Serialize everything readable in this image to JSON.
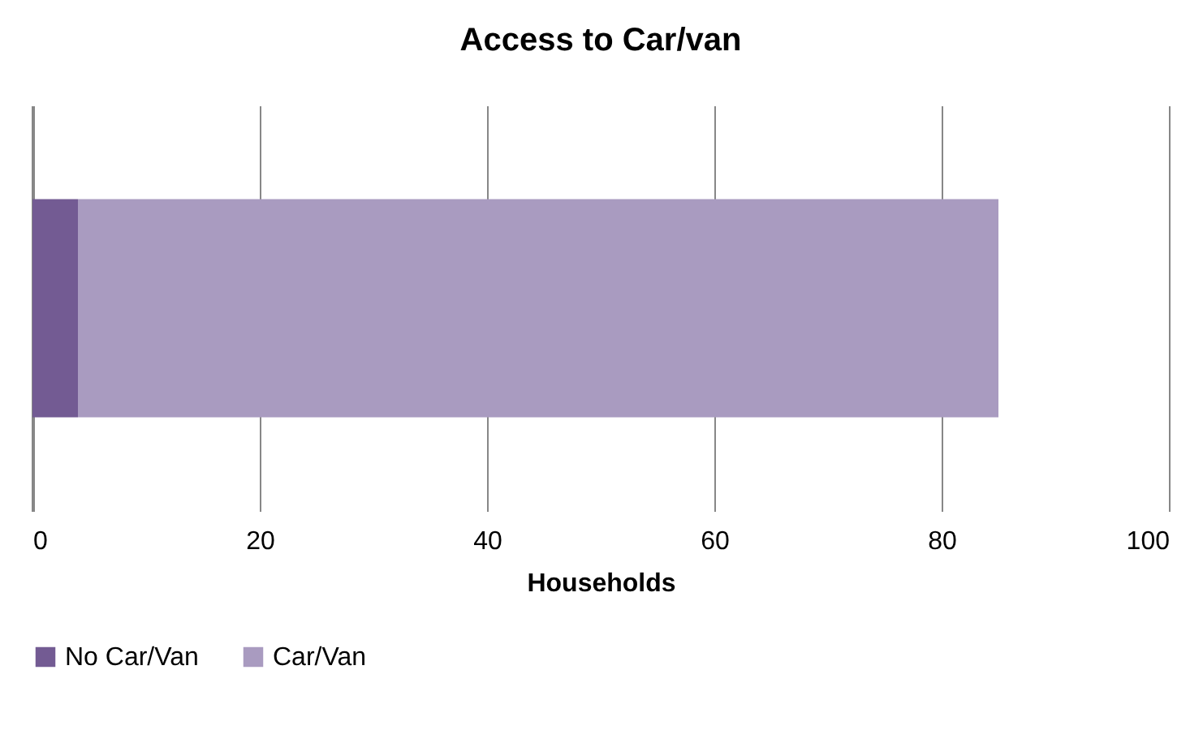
{
  "chart_data": {
    "type": "bar",
    "orientation": "horizontal",
    "stacked": true,
    "title": "Access to Car/van",
    "xlabel": "Households",
    "categories": [
      null
    ],
    "series": [
      {
        "name": "No Car/Van",
        "color": "#735b93",
        "values": [
          4
        ]
      },
      {
        "name": "Car/Van",
        "color": "#a99bc0",
        "values": [
          81
        ]
      }
    ],
    "xlim": [
      0,
      100
    ],
    "xticks": [
      0,
      20,
      40,
      60,
      80,
      100
    ],
    "grid": "x",
    "legend": "bottom"
  }
}
